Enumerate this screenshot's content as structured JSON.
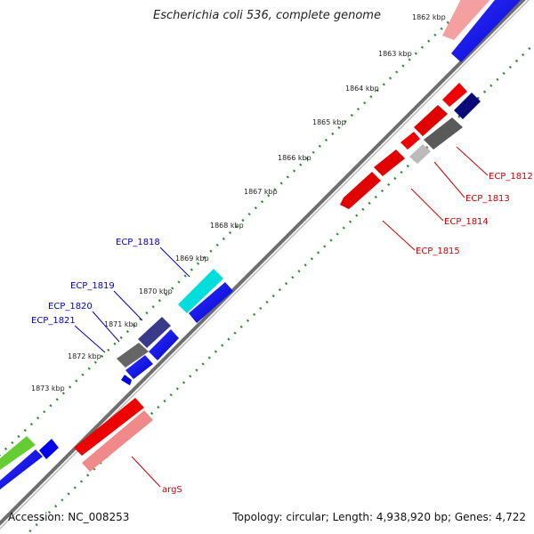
{
  "title": "Escherichia coli 536, complete genome",
  "footer": {
    "accession": "Accession: NC_008253",
    "summary": "Topology: circular; Length: 4,938,920 bp; Genes: 4,722"
  },
  "kbp_ticks": [
    "1862 kbp",
    "1863 kbp",
    "1864 kbp",
    "1865 kbp",
    "1866 kbp",
    "1867 kbp",
    "1868 kbp",
    "1869 kbp",
    "1870 kbp",
    "1871 kbp",
    "1872 kbp",
    "1873 kbp"
  ],
  "gene_labels": [
    "ECP_1812",
    "ECP_1813",
    "ECP_1814",
    "ECP_1815",
    "ECP_1818",
    "ECP_1819",
    "ECP_1820",
    "ECP_1821",
    "argS"
  ],
  "colors": {
    "forward_gene": "#0000ee",
    "reverse_gene": "#ee0000",
    "label_forward": "#0000cc",
    "label_reverse": "#cc0000",
    "backbone": "#888888",
    "tick_dots": "#2a8a2a"
  }
}
